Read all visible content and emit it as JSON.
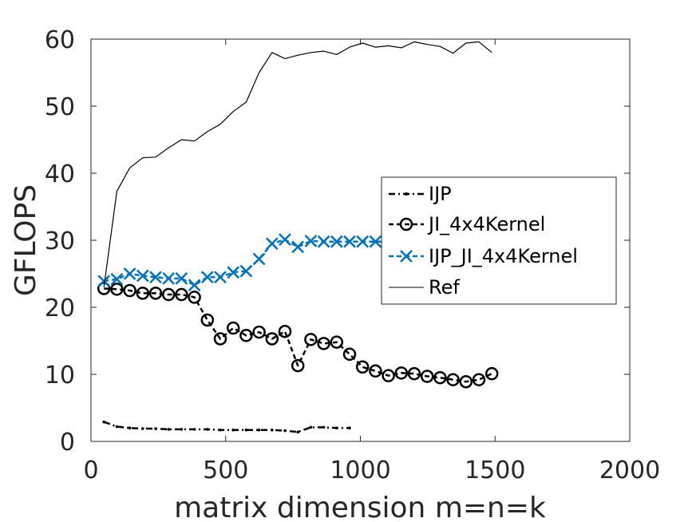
{
  "chart_data": {
    "type": "line",
    "title": "",
    "xlabel": "matrix dimension m=n=k",
    "ylabel": "GFLOPS",
    "xlim": [
      0,
      2000
    ],
    "ylim": [
      0,
      60
    ],
    "x_ticks": [
      0,
      500,
      1000,
      1500,
      2000
    ],
    "y_ticks": [
      0,
      10,
      20,
      30,
      40,
      50,
      60
    ],
    "grid": false,
    "legend_position": "center-right",
    "series": [
      {
        "name": "IJP",
        "color": "#000000",
        "style": "dash-dot",
        "marker": "point",
        "x": [
          48,
          96,
          144,
          192,
          240,
          288,
          336,
          384,
          432,
          480,
          528,
          576,
          624,
          672,
          720,
          768,
          816,
          864,
          912,
          960
        ],
        "y": [
          2.9,
          2.2,
          2.0,
          1.9,
          1.9,
          1.8,
          1.8,
          1.8,
          1.8,
          1.7,
          1.7,
          1.7,
          1.7,
          1.7,
          1.6,
          1.4,
          2.1,
          2.1,
          2.0,
          2.0
        ]
      },
      {
        "name": "JI_4x4Kernel",
        "color": "#000000",
        "style": "dashed",
        "marker": "circle",
        "x": [
          48,
          96,
          144,
          192,
          240,
          288,
          336,
          384,
          432,
          480,
          528,
          576,
          624,
          672,
          720,
          768,
          816,
          864,
          912,
          960,
          1008,
          1056,
          1104,
          1152,
          1200,
          1248,
          1296,
          1344,
          1392,
          1440,
          1488
        ],
        "y": [
          22.8,
          22.7,
          22.5,
          22.1,
          22.1,
          21.9,
          21.9,
          21.5,
          18.1,
          15.3,
          16.9,
          15.8,
          16.3,
          15.3,
          16.4,
          11.3,
          15.2,
          14.6,
          14.8,
          13.0,
          11.1,
          10.5,
          9.8,
          10.2,
          10.1,
          9.7,
          9.5,
          9.2,
          8.9,
          9.2,
          10.1
        ]
      },
      {
        "name": "IJP_JI_4x4Kernel",
        "color": "#0072bd",
        "style": "dashed",
        "marker": "x",
        "x": [
          48,
          96,
          144,
          192,
          240,
          288,
          336,
          384,
          432,
          480,
          528,
          576,
          624,
          672,
          720,
          768,
          816,
          864,
          912,
          960,
          1008,
          1056,
          1104
        ],
        "y": [
          23.9,
          24.2,
          25.0,
          24.7,
          24.5,
          24.3,
          24.3,
          23.3,
          24.5,
          24.5,
          25.2,
          25.4,
          27.2,
          29.5,
          30.1,
          29.0,
          29.9,
          29.8,
          29.8,
          29.8,
          29.8,
          29.8,
          29.8
        ]
      },
      {
        "name": "Ref",
        "color": "#000000",
        "style": "solid",
        "marker": "none",
        "x": [
          48,
          96,
          144,
          192,
          240,
          288,
          336,
          384,
          432,
          480,
          528,
          576,
          624,
          672,
          720,
          768,
          816,
          864,
          912,
          960,
          1008,
          1056,
          1104,
          1152,
          1200,
          1248,
          1296,
          1344,
          1392,
          1440,
          1488
        ],
        "y": [
          23.0,
          37.3,
          40.8,
          42.3,
          42.4,
          43.8,
          45.0,
          44.8,
          46.2,
          47.3,
          49.2,
          50.6,
          55.0,
          58.0,
          57.1,
          57.6,
          58.0,
          58.2,
          57.7,
          58.8,
          59.4,
          58.8,
          59.0,
          58.7,
          59.6,
          59.2,
          58.9,
          57.9,
          59.4,
          59.6,
          58.0
        ]
      }
    ]
  }
}
